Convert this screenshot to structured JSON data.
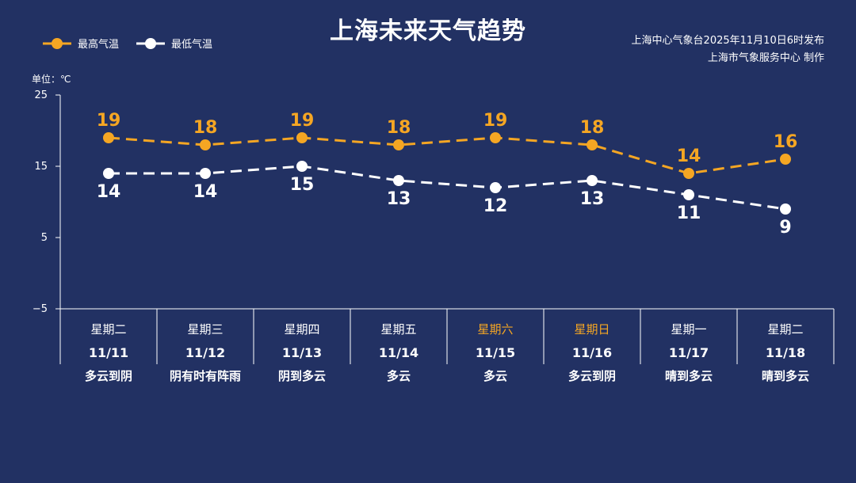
{
  "title": "上海未来天气趋势",
  "legend": {
    "high_label": "最高气温",
    "low_label": "最低气温"
  },
  "source": {
    "line1": "上海中心气象台2025年11月10日6时发布",
    "line2": "上海市气象服务中心  制作"
  },
  "unit_label": "单位：℃",
  "colors": {
    "background": "#223163",
    "high": "#F5A623",
    "low": "#FFFFFF",
    "weekend": "#F5A623"
  },
  "chart_data": {
    "type": "line",
    "ylim": [
      -5,
      25
    ],
    "yticks": [
      25,
      15,
      5,
      -5
    ],
    "categories": [
      "11/11",
      "11/12",
      "11/13",
      "11/14",
      "11/15",
      "11/16",
      "11/17",
      "11/18"
    ],
    "weekdays": [
      "星期二",
      "星期三",
      "星期四",
      "星期五",
      "星期六",
      "星期日",
      "星期一",
      "星期二"
    ],
    "weekend_flags": [
      false,
      false,
      false,
      false,
      true,
      true,
      false,
      false
    ],
    "weather": [
      "多云到阴",
      "阴有时有阵雨",
      "阴到多云",
      "多云",
      "多云",
      "多云到阴",
      "晴到多云",
      "晴到多云"
    ],
    "series": [
      {
        "name": "最高气温",
        "values": [
          19,
          18,
          19,
          18,
          19,
          18,
          14,
          16
        ]
      },
      {
        "name": "最低气温",
        "values": [
          14,
          14,
          15,
          13,
          12,
          13,
          11,
          9
        ]
      }
    ]
  }
}
